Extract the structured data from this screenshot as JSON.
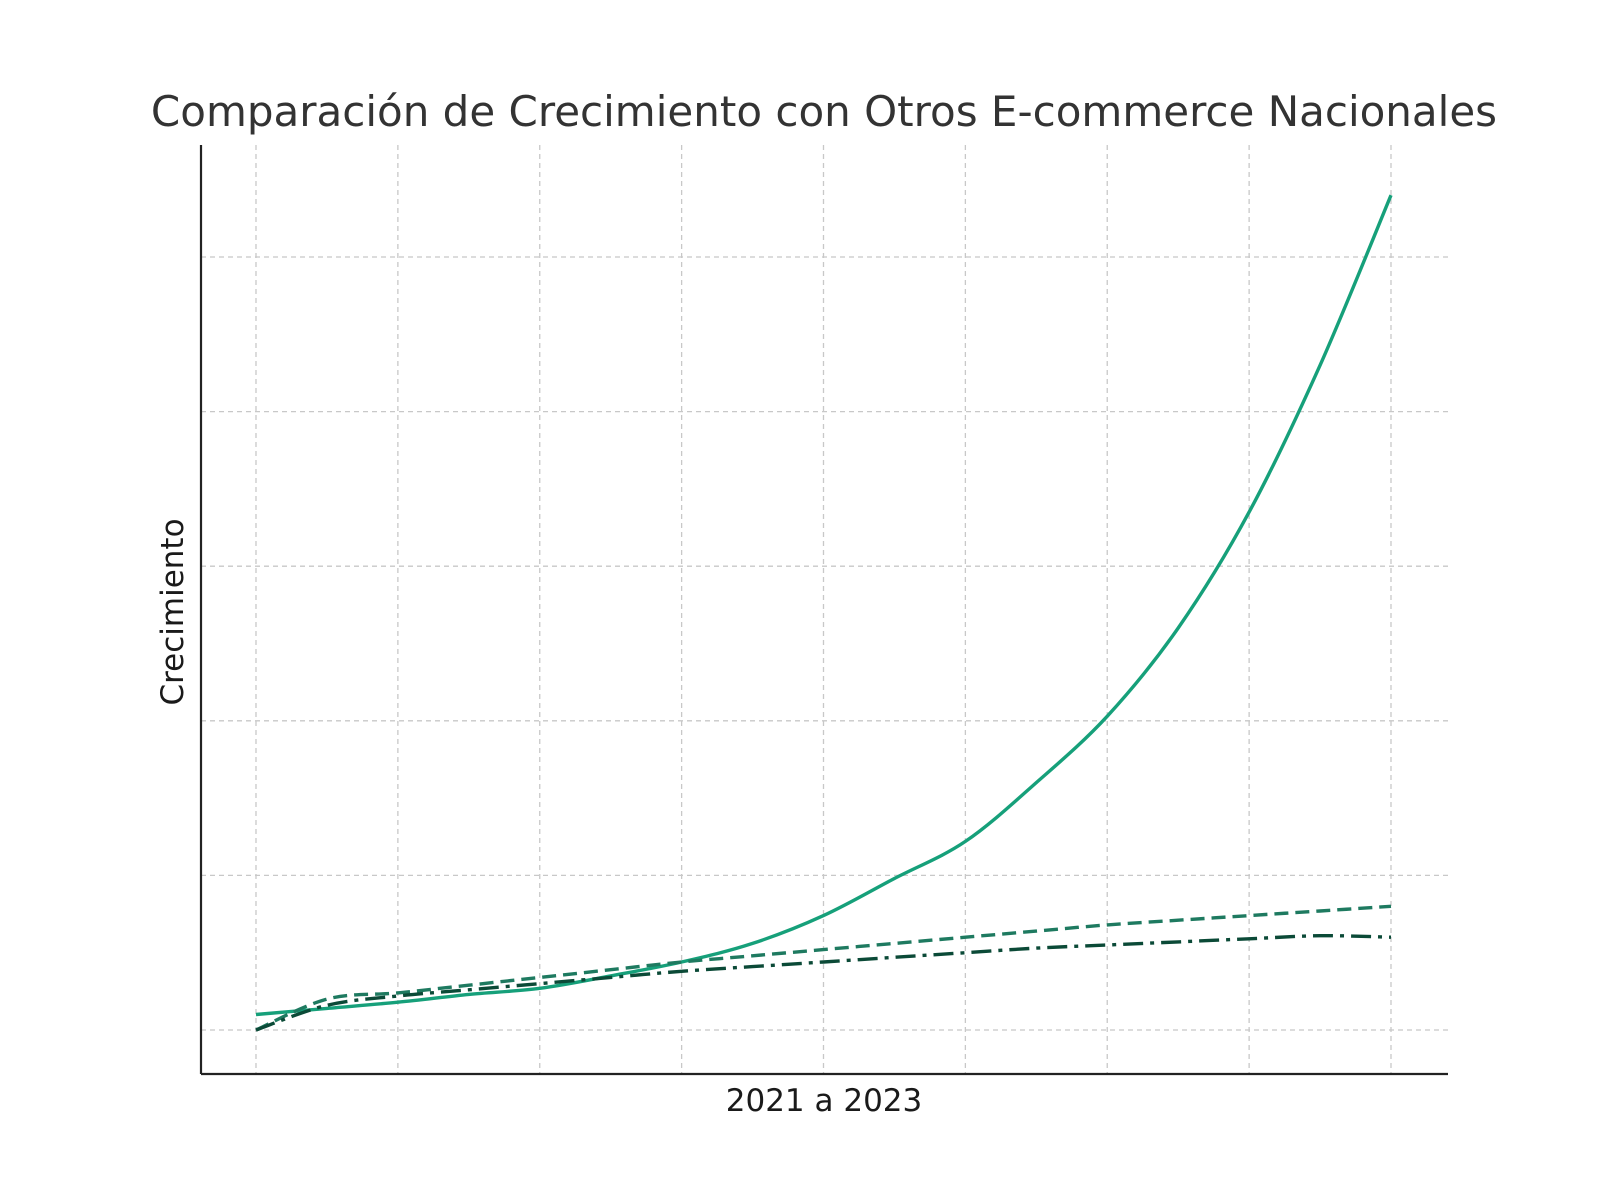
{
  "chart_data": {
    "type": "line",
    "title": "Comparación de Crecimiento con Otros E-commerce Nacionales",
    "xlabel": "2021 a 2023",
    "ylabel": "Crecimiento",
    "xlim": [
      0,
      8
    ],
    "ylim": [
      -0.28,
      5.75
    ],
    "x_ticks": [
      0,
      1,
      2,
      3,
      4,
      5,
      6,
      7,
      8
    ],
    "y_ticks": [
      0,
      1,
      2,
      3,
      4,
      5
    ],
    "grid": true,
    "x": [
      0,
      0.5,
      1,
      1.5,
      2,
      2.5,
      3,
      3.5,
      4,
      4.5,
      5,
      5.5,
      6,
      6.5,
      7,
      7.5,
      8
    ],
    "series": [
      {
        "style": "solid",
        "color": "#16a07a",
        "values": [
          0.1,
          0.14,
          0.18,
          0.23,
          0.27,
          0.35,
          0.44,
          0.56,
          0.74,
          0.98,
          1.22,
          1.6,
          2.03,
          2.6,
          3.35,
          4.3,
          5.4
        ]
      },
      {
        "style": "dashed",
        "color": "#1e7a60",
        "values": [
          0,
          0.2,
          0.24,
          0.29,
          0.34,
          0.39,
          0.44,
          0.48,
          0.52,
          0.56,
          0.6,
          0.64,
          0.68,
          0.71,
          0.74,
          0.77,
          0.8
        ]
      },
      {
        "style": "dashdot",
        "color": "#0b4a37",
        "values": [
          0,
          0.16,
          0.22,
          0.26,
          0.3,
          0.34,
          0.38,
          0.41,
          0.44,
          0.47,
          0.5,
          0.53,
          0.55,
          0.57,
          0.59,
          0.61,
          0.6
        ]
      }
    ]
  }
}
